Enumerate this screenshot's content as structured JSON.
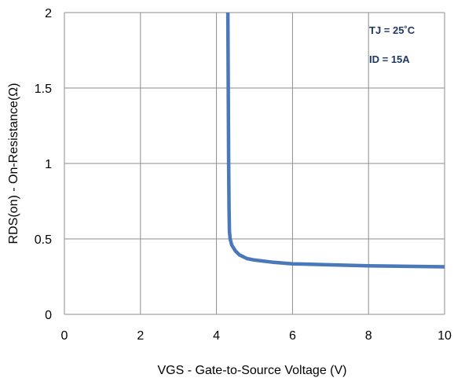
{
  "chart_data": {
    "type": "line",
    "title": "",
    "xlabel": "VGS - Gate-to-Source Voltage (V)",
    "ylabel": "RDS(on) - On-Resistance(Ω)",
    "xlim": [
      0,
      10
    ],
    "ylim": [
      0,
      2
    ],
    "x_ticks": [
      "0",
      "2",
      "4",
      "6",
      "8",
      "10"
    ],
    "y_ticks": [
      "0",
      "0.5",
      "1",
      "1.5",
      "2"
    ],
    "grid": true,
    "legend": "none",
    "annotations": [
      "TJ = 25˚C",
      "ID = 15A"
    ],
    "series": [
      {
        "color": "#4a78b8",
        "points": [
          [
            4.3,
            2.0
          ],
          [
            4.31,
            1.5
          ],
          [
            4.32,
            1.0
          ],
          [
            4.33,
            0.7
          ],
          [
            4.34,
            0.55
          ],
          [
            4.36,
            0.5
          ],
          [
            4.4,
            0.46
          ],
          [
            4.5,
            0.42
          ],
          [
            4.6,
            0.395
          ],
          [
            4.8,
            0.37
          ],
          [
            5.0,
            0.36
          ],
          [
            5.5,
            0.345
          ],
          [
            6.0,
            0.335
          ],
          [
            7.0,
            0.328
          ],
          [
            8.0,
            0.322
          ],
          [
            9.0,
            0.318
          ],
          [
            10.0,
            0.315
          ]
        ]
      }
    ]
  }
}
